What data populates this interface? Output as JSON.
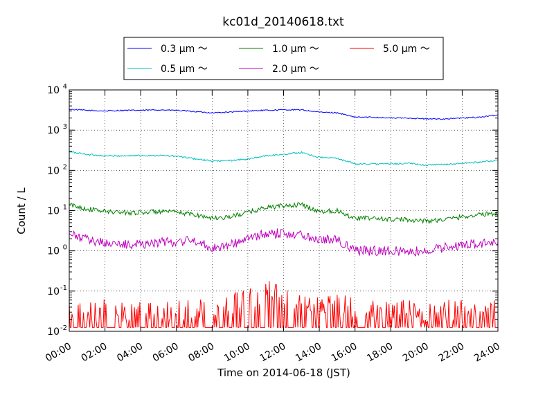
{
  "chart_data": {
    "type": "line",
    "title": "kc01d_20140618.txt",
    "xlabel": "Time on 2014-06-18 (JST)",
    "ylabel": "Count / L",
    "xlim": [
      0,
      24
    ],
    "ylim": [
      0.01,
      10000
    ],
    "yscale": "log",
    "grid": true,
    "legend_position": "top-center",
    "x_tick_labels": [
      "00:00",
      "02:00",
      "04:00",
      "06:00",
      "08:00",
      "10:00",
      "12:00",
      "14:00",
      "16:00",
      "18:00",
      "20:00",
      "22:00",
      "24:00"
    ],
    "y_tick_labels": [
      {
        "base": "10",
        "exp": "-2"
      },
      {
        "base": "10",
        "exp": "-1"
      },
      {
        "base": "10",
        "exp": "0"
      },
      {
        "base": "10",
        "exp": "1"
      },
      {
        "base": "10",
        "exp": "2"
      },
      {
        "base": "10",
        "exp": "3"
      },
      {
        "base": "10",
        "exp": "4"
      }
    ],
    "x": [
      0,
      1,
      2,
      3,
      4,
      5,
      6,
      7,
      8,
      9,
      10,
      11,
      12,
      13,
      14,
      15,
      16,
      17,
      18,
      19,
      20,
      21,
      22,
      23,
      24
    ],
    "series": [
      {
        "name": "0.3 μm ～",
        "color": "#0000ff",
        "values": [
          3300,
          3100,
          3000,
          3100,
          3100,
          3200,
          3100,
          2900,
          2700,
          2800,
          3000,
          3100,
          3200,
          3200,
          2800,
          2700,
          2100,
          2100,
          2000,
          2000,
          1900,
          1900,
          2000,
          2100,
          2400
        ]
      },
      {
        "name": "0.5 μm ～",
        "color": "#00bfbf",
        "values": [
          290,
          250,
          230,
          230,
          235,
          235,
          225,
          195,
          170,
          175,
          190,
          230,
          250,
          280,
          210,
          200,
          145,
          145,
          145,
          150,
          135,
          140,
          150,
          160,
          180
        ]
      },
      {
        "name": "1.0 μm ～",
        "color": "#008000",
        "values": [
          14,
          11,
          9.5,
          9,
          9,
          9.5,
          9,
          8,
          6.5,
          7,
          9,
          12,
          13,
          14,
          9.5,
          10,
          6.5,
          6.5,
          6,
          6,
          5.5,
          6,
          7,
          8,
          8.5
        ]
      },
      {
        "name": "2.0 μm ～",
        "color": "#bf00bf",
        "values": [
          2.5,
          1.9,
          1.6,
          1.4,
          1.5,
          1.6,
          1.7,
          1.8,
          1.2,
          1.4,
          2.0,
          2.6,
          2.8,
          2.5,
          2.0,
          1.9,
          1.0,
          1.0,
          1.0,
          0.95,
          1.0,
          1.2,
          1.4,
          1.5,
          1.6
        ]
      },
      {
        "name": "5.0 μm ～",
        "color": "#ff0000",
        "values": [
          0.03,
          0.025,
          0.03,
          0.025,
          0.025,
          0.02,
          0.025,
          0.03,
          0.03,
          0.035,
          0.05,
          0.08,
          0.06,
          0.05,
          0.04,
          0.035,
          0.03,
          0.025,
          0.025,
          0.025,
          0.02,
          0.025,
          0.025,
          0.03,
          0.03
        ]
      }
    ]
  }
}
